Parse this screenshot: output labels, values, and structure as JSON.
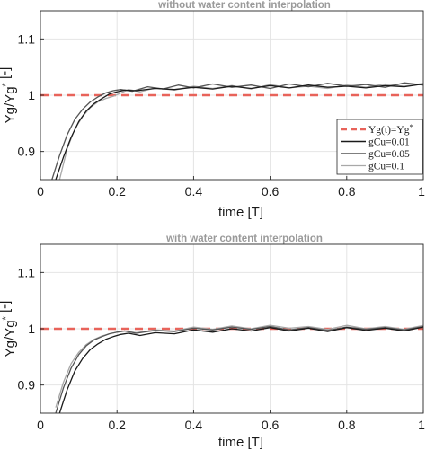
{
  "chart_data": [
    {
      "type": "line",
      "title": "without water content interpolation",
      "xlabel": "time [T]",
      "ylabel": "Yg/Yg* [-]",
      "xlim": [
        0,
        1
      ],
      "ylim": [
        0.85,
        1.15
      ],
      "xticks": [
        "0",
        "0.2",
        "0.4",
        "0.6",
        "0.8",
        "1"
      ],
      "yticks": [
        "0.9",
        "1",
        "1.1"
      ],
      "grid": true,
      "legend": {
        "placement": "bottom-right",
        "entries": [
          "Yg(t)=Yg*",
          "gCu=0.01",
          "gCu=0.05",
          "gCu=0.1"
        ]
      },
      "reference": {
        "name": "Yg(t)=Yg*",
        "y": 1.0,
        "color": "#e8635a",
        "style": "dashed"
      },
      "series": [
        {
          "name": "gCu=0.01",
          "color": "#1a1a1a",
          "x": [
            0.04,
            0.06,
            0.08,
            0.1,
            0.12,
            0.14,
            0.16,
            0.18,
            0.2,
            0.22,
            0.25,
            0.3,
            0.35,
            0.4,
            0.45,
            0.5,
            0.55,
            0.6,
            0.65,
            0.7,
            0.75,
            0.8,
            0.85,
            0.9,
            0.95,
            1.0
          ],
          "y": [
            0.85,
            0.89,
            0.925,
            0.953,
            0.972,
            0.985,
            0.994,
            1.002,
            1.006,
            1.009,
            1.008,
            1.012,
            1.01,
            1.014,
            1.011,
            1.016,
            1.012,
            1.017,
            1.013,
            1.018,
            1.014,
            1.016,
            1.013,
            1.017,
            1.015,
            1.02
          ]
        },
        {
          "name": "gCu=0.05",
          "color": "#555555",
          "x": [
            0.03,
            0.05,
            0.07,
            0.09,
            0.11,
            0.13,
            0.15,
            0.17,
            0.19,
            0.21,
            0.24,
            0.28,
            0.32,
            0.36,
            0.4,
            0.45,
            0.5,
            0.55,
            0.6,
            0.65,
            0.7,
            0.75,
            0.8,
            0.85,
            0.9,
            0.95,
            1.0
          ],
          "y": [
            0.85,
            0.893,
            0.93,
            0.957,
            0.975,
            0.988,
            0.997,
            1.004,
            1.008,
            1.01,
            1.007,
            1.015,
            1.011,
            1.018,
            1.013,
            1.02,
            1.014,
            1.018,
            1.012,
            1.02,
            1.015,
            1.021,
            1.016,
            1.019,
            1.014,
            1.022,
            1.018
          ]
        },
        {
          "name": "gCu=0.1",
          "color": "#a8a8a8",
          "x": [
            0.05,
            0.07,
            0.09,
            0.11,
            0.13,
            0.15,
            0.17,
            0.19,
            0.21,
            0.23,
            0.26,
            0.3,
            0.35,
            0.4,
            0.45,
            0.5,
            0.55,
            0.6,
            0.65,
            0.7,
            0.75,
            0.8,
            0.85,
            0.9,
            0.95,
            1.0
          ],
          "y": [
            0.85,
            0.905,
            0.94,
            0.962,
            0.978,
            0.988,
            0.994,
            0.998,
            1.004,
            1.01,
            1.006,
            1.013,
            1.009,
            1.016,
            1.012,
            1.017,
            1.011,
            1.019,
            1.013,
            1.016,
            1.012,
            1.018,
            1.014,
            1.02,
            1.016,
            1.021
          ]
        }
      ]
    },
    {
      "type": "line",
      "title": "with water content interpolation",
      "xlabel": "time [T]",
      "ylabel": "Yg/Yg* [-]",
      "xlim": [
        0,
        1
      ],
      "ylim": [
        0.85,
        1.15
      ],
      "xticks": [
        "0",
        "0.2",
        "0.4",
        "0.6",
        "0.8",
        "1"
      ],
      "yticks": [
        "0.9",
        "1",
        "1.1"
      ],
      "grid": true,
      "reference": {
        "name": "Yg(t)=Yg*",
        "y": 1.0,
        "color": "#e8635a",
        "style": "dashed"
      },
      "series": [
        {
          "name": "gCu=0.01",
          "color": "#1a1a1a",
          "x": [
            0.05,
            0.07,
            0.09,
            0.11,
            0.13,
            0.15,
            0.17,
            0.19,
            0.21,
            0.23,
            0.26,
            0.3,
            0.35,
            0.4,
            0.45,
            0.5,
            0.55,
            0.6,
            0.65,
            0.7,
            0.75,
            0.8,
            0.85,
            0.9,
            0.95,
            1.0
          ],
          "y": [
            0.85,
            0.892,
            0.925,
            0.947,
            0.963,
            0.973,
            0.981,
            0.986,
            0.99,
            0.992,
            0.988,
            0.993,
            0.991,
            0.998,
            0.994,
            1.0,
            0.996,
            1.002,
            0.996,
            1.001,
            0.995,
            1.002,
            0.997,
            1.001,
            0.996,
            1.003
          ]
        },
        {
          "name": "gCu=0.05",
          "color": "#555555",
          "x": [
            0.04,
            0.06,
            0.08,
            0.1,
            0.12,
            0.14,
            0.16,
            0.18,
            0.2,
            0.22,
            0.25,
            0.3,
            0.35,
            0.4,
            0.45,
            0.5,
            0.55,
            0.6,
            0.65,
            0.7,
            0.75,
            0.8,
            0.85,
            0.9,
            0.95,
            1.0
          ],
          "y": [
            0.85,
            0.895,
            0.93,
            0.954,
            0.97,
            0.98,
            0.986,
            0.991,
            0.994,
            0.996,
            0.992,
            0.997,
            0.995,
            1.001,
            0.998,
            1.003,
            0.999,
            1.004,
            0.998,
            1.002,
            0.997,
            1.003,
            0.999,
            1.002,
            0.998,
            1.004
          ]
        },
        {
          "name": "gCu=0.1",
          "color": "#a8a8a8",
          "x": [
            0.04,
            0.06,
            0.08,
            0.1,
            0.12,
            0.14,
            0.16,
            0.18,
            0.2,
            0.22,
            0.25,
            0.3,
            0.35,
            0.4,
            0.45,
            0.5,
            0.55,
            0.6,
            0.65,
            0.7,
            0.75,
            0.8,
            0.85,
            0.9,
            0.95,
            1.0
          ],
          "y": [
            0.86,
            0.905,
            0.938,
            0.958,
            0.972,
            0.981,
            0.987,
            0.991,
            0.994,
            0.996,
            0.993,
            0.998,
            0.996,
            1.003,
            0.999,
            1.005,
            1.0,
            1.006,
            1.001,
            1.004,
            0.999,
            1.006,
            1.0,
            1.004,
            0.999,
            1.006
          ]
        }
      ]
    }
  ]
}
